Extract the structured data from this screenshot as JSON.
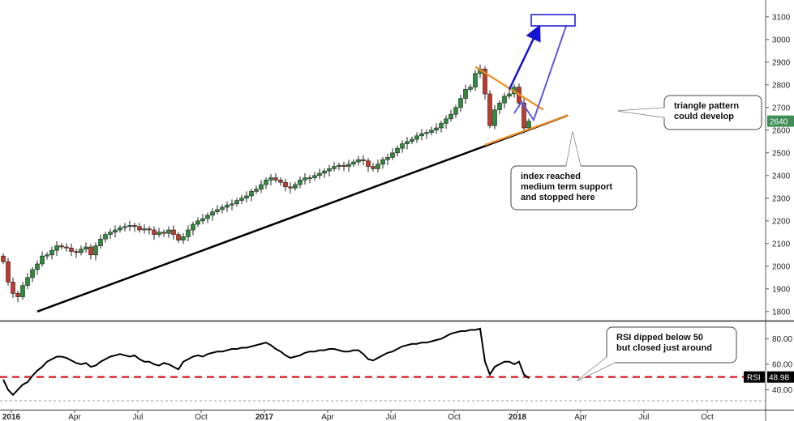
{
  "chart_data": [
    {
      "type": "candlestick",
      "panel": "price",
      "ylim": [
        1760,
        3160
      ],
      "yticks": [
        "1800",
        "1900",
        "2000",
        "2100",
        "2200",
        "2300",
        "2400",
        "2500",
        "2600",
        "2700",
        "2800",
        "2900",
        "3000",
        "3100"
      ],
      "last_price_label": "2640",
      "last_price_value": 2640,
      "weekly_closes": [
        2020,
        1930,
        1880,
        1865,
        1915,
        1950,
        1985,
        2010,
        2045,
        2050,
        2070,
        2090,
        2085,
        2080,
        2065,
        2060,
        2075,
        2085,
        2050,
        2090,
        2120,
        2140,
        2150,
        2160,
        2170,
        2175,
        2180,
        2175,
        2160,
        2165,
        2160,
        2140,
        2150,
        2145,
        2160,
        2140,
        2115,
        2130,
        2160,
        2185,
        2200,
        2210,
        2225,
        2240,
        2250,
        2260,
        2270,
        2275,
        2290,
        2300,
        2310,
        2330,
        2340,
        2360,
        2380,
        2390,
        2380,
        2370,
        2350,
        2345,
        2360,
        2380,
        2390,
        2390,
        2400,
        2410,
        2420,
        2430,
        2440,
        2445,
        2440,
        2450,
        2460,
        2470,
        2465,
        2440,
        2430,
        2450,
        2470,
        2480,
        2500,
        2520,
        2540,
        2550,
        2560,
        2575,
        2585,
        2590,
        2600,
        2610,
        2630,
        2650,
        2670,
        2700,
        2740,
        2780,
        2790,
        2850,
        2870,
        2760,
        2620,
        2690,
        2720,
        2750,
        2760,
        2790,
        2720,
        2610,
        2640
      ],
      "trendline": {
        "from": {
          "week": 7,
          "value": 1800
        },
        "to": {
          "week": 116,
          "value": 2665
        },
        "color": "#000000"
      },
      "triangle": {
        "upper": {
          "from": {
            "week": 97,
            "value": 2880
          },
          "to": {
            "week": 111,
            "value": 2690
          }
        },
        "lower": {
          "from": {
            "week": 99,
            "value": 2535
          },
          "to": {
            "week": 116,
            "value": 2665
          }
        },
        "color": "#f08c1e"
      },
      "projection_arrow": {
        "from": {
          "week": 104,
          "value": 2780
        },
        "to": {
          "week": 110,
          "value": 3050
        },
        "color": "#1414d2"
      },
      "zigzag_path": [
        {
          "week": 105,
          "value": 2675
        },
        {
          "week": 106.5,
          "value": 2725
        },
        {
          "week": 109,
          "value": 2645
        },
        {
          "week": 116,
          "value": 3080
        }
      ],
      "zigzag_color": "#5a5ade",
      "target_box": {
        "from_week": 108.5,
        "to_week": 117.5,
        "top": 3110,
        "bottom": 3060,
        "color": "#1414d2"
      },
      "annotations": [
        "triangle pattern\ncould develop",
        "index reached\nmedium term support\nand stopped here"
      ]
    },
    {
      "type": "line",
      "panel": "rsi",
      "ylim": [
        25,
        93
      ],
      "yticks": [
        "40.00",
        "60.00",
        "80.00"
      ],
      "reference_level": 50,
      "reference_color": "#e0141e",
      "label": "RSI",
      "last_value_label": "48.98",
      "values": [
        48,
        40,
        36,
        40,
        44,
        46,
        51,
        55,
        58,
        62,
        64,
        66,
        66,
        65,
        63,
        61,
        60,
        61,
        58,
        59,
        62,
        64,
        66,
        67,
        68,
        67,
        66,
        67,
        64,
        62,
        62,
        60,
        59,
        61,
        60,
        58,
        56,
        62,
        64,
        66,
        67,
        66,
        68,
        69,
        70,
        70,
        71,
        72,
        72,
        73,
        73,
        74,
        75,
        76,
        77,
        75,
        72,
        70,
        67,
        65,
        66,
        67,
        69,
        70,
        70,
        71,
        71,
        72,
        72,
        71,
        70,
        70,
        71,
        71,
        68,
        64,
        63,
        65,
        67,
        69,
        70,
        72,
        74,
        75,
        76,
        76,
        77,
        77,
        78,
        79,
        80,
        82,
        84,
        85,
        86,
        86,
        87,
        87,
        88,
        62,
        52,
        58,
        60,
        62,
        62,
        60,
        62,
        52,
        48.98
      ],
      "annotation": "RSI dipped below 50\nbut closed just around"
    }
  ],
  "x_axis": {
    "labels": [
      "2016",
      "Apr",
      "Jul",
      "Oct",
      "2017",
      "Apr",
      "Jul",
      "Oct",
      "2018",
      "Apr",
      "Jul",
      "Oct"
    ],
    "bold_labels": [
      "2016",
      "2017",
      "2018"
    ]
  }
}
